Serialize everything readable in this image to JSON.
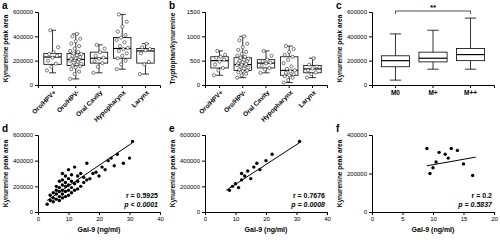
{
  "chart_data": [
    {
      "type": "box",
      "title": "a",
      "y_label": "Kynurenine peak area",
      "color": "#000000",
      "categories": [
        "Oro/HPV+",
        "Oro/HPV-",
        "Oral Cavity",
        "Hypopharynx",
        "Larynx"
      ],
      "boxes": [
        {
          "min": 100000,
          "q1": 170000,
          "median": 230000,
          "q3": 260000,
          "max": 450000
        },
        {
          "min": 50000,
          "q1": 160000,
          "median": 210000,
          "q3": 260000,
          "max": 420000
        },
        {
          "min": 100000,
          "q1": 180000,
          "median": 220000,
          "q3": 270000,
          "max": 330000
        },
        {
          "min": 130000,
          "q1": 220000,
          "median": 300000,
          "q3": 390000,
          "max": 580000
        },
        {
          "min": 90000,
          "q1": 180000,
          "median": 280000,
          "q3": 300000,
          "max": 340000
        }
      ],
      "points": [
        [
          120000,
          150000,
          175000,
          200000,
          225000,
          240000,
          255000,
          270000,
          310000,
          450000
        ],
        [
          50000,
          90000,
          110000,
          130000,
          145000,
          155000,
          160000,
          170000,
          175000,
          185000,
          190000,
          200000,
          205000,
          210000,
          215000,
          220000,
          230000,
          240000,
          245000,
          255000,
          260000,
          270000,
          280000,
          300000,
          320000,
          340000,
          360000,
          380000,
          400000,
          420000
        ],
        [
          100000,
          150000,
          180000,
          195000,
          215000,
          225000,
          240000,
          270000,
          300000,
          330000
        ],
        [
          130000,
          170000,
          200000,
          220000,
          240000,
          260000,
          280000,
          295000,
          305000,
          320000,
          350000,
          370000,
          390000,
          410000,
          440000,
          480000,
          520000,
          580000
        ],
        [
          90000,
          170000,
          190000,
          260000,
          285000,
          295000,
          310000,
          340000
        ]
      ],
      "ylim": [
        0,
        600000
      ],
      "yticks": [
        0,
        200000,
        400000,
        600000
      ]
    },
    {
      "type": "box",
      "title": "b",
      "y_label": "Tryptophan/kynurenine",
      "color": "#000000",
      "categories": [
        "Oro/HPV+",
        "Oro/HPV-",
        "Oral Cavity",
        "Hypopharynx",
        "Larynx"
      ],
      "boxes": [
        {
          "min": 200,
          "q1": 350,
          "median": 500,
          "q3": 580,
          "max": 700
        },
        {
          "min": 150,
          "q1": 300,
          "median": 420,
          "q3": 560,
          "max": 1000
        },
        {
          "min": 250,
          "q1": 350,
          "median": 450,
          "q3": 520,
          "max": 700
        },
        {
          "min": 50,
          "q1": 200,
          "median": 300,
          "q3": 580,
          "max": 800
        },
        {
          "min": 150,
          "q1": 250,
          "median": 330,
          "q3": 400,
          "max": 550
        }
      ],
      "points": [
        [
          200,
          300,
          350,
          420,
          480,
          520,
          560,
          580,
          620,
          700
        ],
        [
          150,
          200,
          230,
          260,
          290,
          300,
          320,
          340,
          360,
          380,
          400,
          410,
          420,
          430,
          450,
          470,
          490,
          500,
          520,
          540,
          560,
          580,
          600,
          640,
          680,
          720,
          780,
          850,
          920,
          1000
        ],
        [
          250,
          320,
          350,
          400,
          440,
          460,
          490,
          520,
          600,
          700
        ],
        [
          50,
          100,
          150,
          180,
          200,
          220,
          250,
          280,
          300,
          330,
          380,
          450,
          520,
          580,
          620,
          680,
          740,
          800
        ],
        [
          150,
          220,
          260,
          300,
          340,
          380,
          420,
          550
        ]
      ],
      "ylim": [
        0,
        1500
      ],
      "yticks": [
        0,
        500,
        1000,
        1500
      ]
    },
    {
      "type": "box",
      "title": "c",
      "y_label": "Kynurenine peak area",
      "color": "#000000",
      "categories": [
        "M0",
        "M+",
        "M++"
      ],
      "boxes": [
        {
          "min": 40000,
          "q1": 150000,
          "median": 200000,
          "q3": 240000,
          "max": 420000
        },
        {
          "min": 130000,
          "q1": 190000,
          "median": 220000,
          "q3": 270000,
          "max": 450000
        },
        {
          "min": 130000,
          "q1": 200000,
          "median": 250000,
          "q3": 300000,
          "max": 550000
        }
      ],
      "annotations": [
        "**"
      ],
      "ylim": [
        0,
        600000
      ],
      "yticks": [
        0,
        200000,
        400000,
        600000
      ]
    },
    {
      "type": "scatter",
      "title": "d",
      "x_label": "Gal-9 (ng/ml)",
      "y_label": "Kynurenine peak area",
      "color": "#000000",
      "series": [
        {
          "type": "scatter",
          "x": [
            3,
            4,
            4,
            5,
            5,
            5,
            6,
            6,
            6,
            6,
            7,
            7,
            7,
            7,
            7,
            8,
            8,
            8,
            8,
            8,
            8,
            9,
            9,
            9,
            9,
            9,
            10,
            10,
            10,
            10,
            10,
            11,
            11,
            11,
            11,
            12,
            12,
            12,
            13,
            13,
            13,
            14,
            14,
            15,
            15,
            16,
            16,
            17,
            18,
            19,
            20,
            21,
            22,
            23,
            24,
            25,
            26,
            28,
            30,
            31
          ],
          "values": [
            60000,
            90000,
            130000,
            80000,
            110000,
            150000,
            100000,
            140000,
            170000,
            200000,
            90000,
            120000,
            160000,
            190000,
            240000,
            110000,
            140000,
            170000,
            210000,
            250000,
            300000,
            120000,
            160000,
            200000,
            230000,
            280000,
            130000,
            170000,
            210000,
            260000,
            330000,
            150000,
            190000,
            240000,
            290000,
            170000,
            220000,
            350000,
            180000,
            240000,
            280000,
            200000,
            300000,
            230000,
            270000,
            250000,
            380000,
            260000,
            300000,
            310000,
            280000,
            350000,
            330000,
            400000,
            420000,
            360000,
            450000,
            380000,
            420000,
            550000
          ]
        },
        {
          "type": "line",
          "x": [
            3,
            31
          ],
          "values": [
            90000,
            540000
          ]
        }
      ],
      "annotations": [
        "r = 0.5925",
        "p < 0.0001"
      ],
      "xlim": [
        0,
        40
      ],
      "xticks": [
        0,
        10,
        20,
        30,
        40
      ],
      "ylim": [
        0,
        600000
      ],
      "yticks": [
        0,
        200000,
        400000,
        600000
      ]
    },
    {
      "type": "scatter",
      "title": "e",
      "x_label": "Gal-9 (ng/ml)",
      "y_label": "Kynurenine peak area",
      "color": "#000000",
      "series": [
        {
          "type": "scatter",
          "x": [
            8,
            9,
            10,
            11,
            12,
            12,
            13,
            14,
            15,
            16,
            17,
            18,
            20,
            22,
            31
          ],
          "values": [
            170000,
            200000,
            220000,
            190000,
            250000,
            300000,
            280000,
            320000,
            260000,
            350000,
            380000,
            330000,
            400000,
            450000,
            550000
          ]
        },
        {
          "type": "line",
          "x": [
            7,
            31
          ],
          "values": [
            170000,
            540000
          ]
        }
      ],
      "annotations": [
        "r = 0.7676",
        "p = 0.0008"
      ],
      "xlim": [
        0,
        40
      ],
      "xticks": [
        0,
        10,
        20,
        30,
        40
      ],
      "ylim": [
        0,
        600000
      ],
      "yticks": [
        0,
        200000,
        400000,
        600000
      ]
    },
    {
      "type": "scatter",
      "title": "f",
      "x_label": "Gal-9 (ng/ml)",
      "y_label": "Kynurenine peak area",
      "color": "#000000",
      "series": [
        {
          "type": "scatter",
          "x": [
            9,
            9.5,
            10,
            10.5,
            11,
            12,
            12.5,
            13,
            14,
            15,
            16.5
          ],
          "values": [
            330000,
            200000,
            230000,
            260000,
            310000,
            300000,
            280000,
            330000,
            320000,
            250000,
            190000
          ]
        },
        {
          "type": "line",
          "x": [
            9,
            17
          ],
          "values": [
            240000,
            285000
          ]
        }
      ],
      "annotations": [
        "r = 0.2",
        "p = 0.5837"
      ],
      "xlim": [
        0,
        20
      ],
      "xticks": [
        0,
        5,
        10,
        15,
        20
      ],
      "ylim": [
        0,
        400000
      ],
      "yticks": [
        0,
        200000,
        400000
      ]
    }
  ]
}
